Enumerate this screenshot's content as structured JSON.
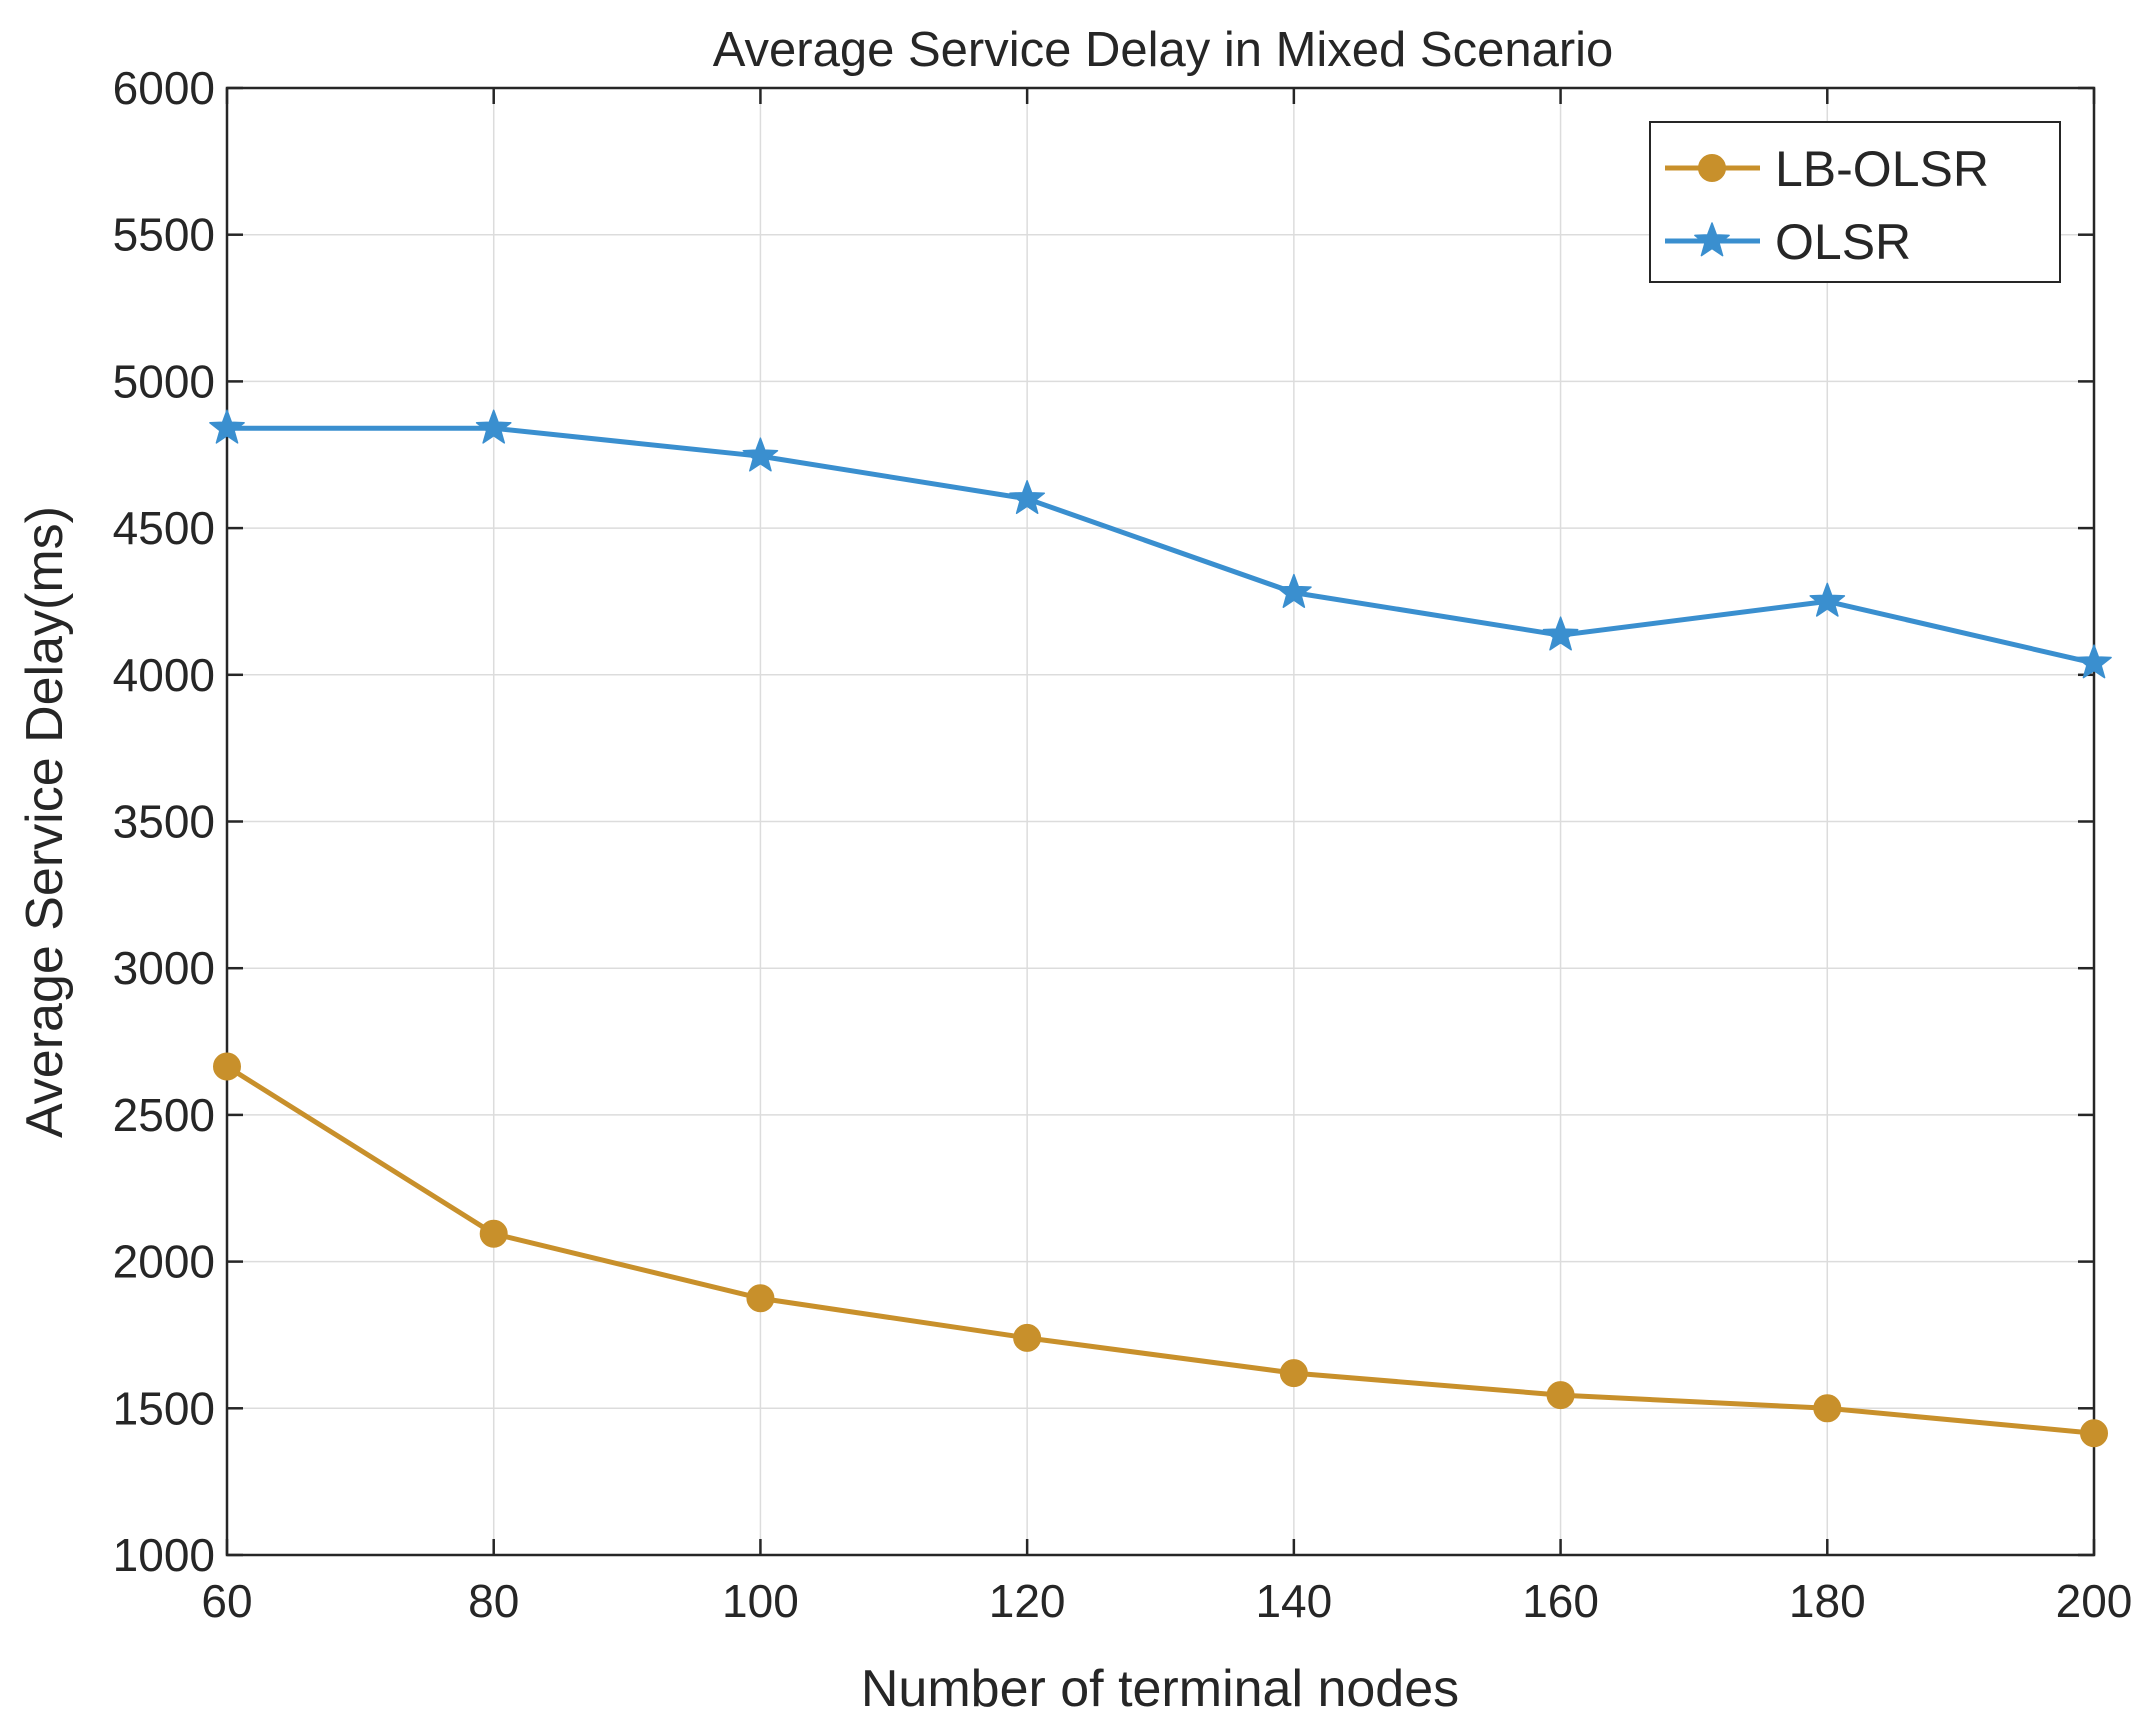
{
  "chart_data": {
    "type": "line",
    "title": "Average Service Delay in Mixed Scenario",
    "xlabel": "Number of terminal nodes",
    "ylabel": "Average Service Delay(ms)",
    "x": [
      60,
      80,
      100,
      120,
      140,
      160,
      180,
      200
    ],
    "xlim": [
      60,
      200
    ],
    "ylim": [
      1000,
      6000
    ],
    "xticks": [
      "60",
      "80",
      "100",
      "120",
      "140",
      "160",
      "180",
      "200"
    ],
    "yticks": [
      "1000",
      "1500",
      "2000",
      "2500",
      "3000",
      "3500",
      "4000",
      "4500",
      "5000",
      "5500",
      "6000"
    ],
    "grid": true,
    "legend_position": "top-right",
    "series": [
      {
        "name": "LB-OLSR",
        "marker": "circle",
        "color": "#C8902B",
        "values": [
          2665,
          2095,
          1875,
          1740,
          1620,
          1545,
          1500,
          1415
        ]
      },
      {
        "name": "OLSR",
        "marker": "star",
        "color": "#3A8FCF",
        "values": [
          4840,
          4840,
          4745,
          4600,
          4280,
          4135,
          4250,
          4040
        ]
      }
    ]
  }
}
